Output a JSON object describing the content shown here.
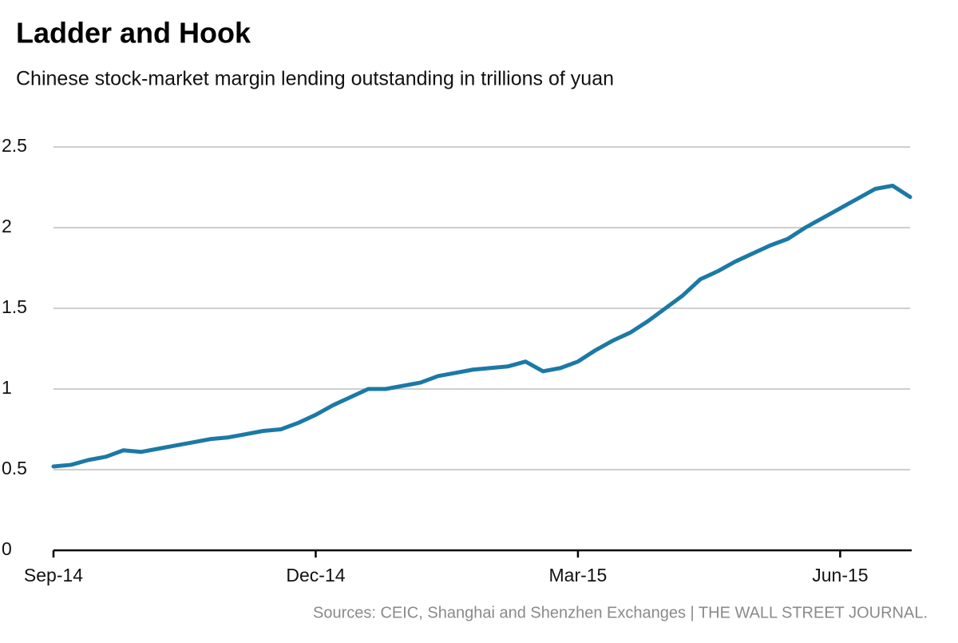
{
  "chart_data": {
    "type": "line",
    "title": "Ladder and Hook",
    "subtitle": "Chinese stock-market margin lending outstanding in trillions of yuan",
    "source": "Sources: CEIC, Shanghai and Shenzhen Exchanges  |  THE WALL STREET JOURNAL.",
    "color": "#1b79a5",
    "grid": true,
    "xlim": [
      0,
      49
    ],
    "xticks": [
      {
        "value": 0,
        "label": "Sep-14"
      },
      {
        "value": 15,
        "label": "Dec-14"
      },
      {
        "value": 30,
        "label": "Mar-15"
      },
      {
        "value": 45,
        "label": "Jun-15"
      }
    ],
    "ylim": [
      0,
      2.5
    ],
    "yticks": [
      0,
      0.5,
      1,
      1.5,
      2,
      2.5
    ],
    "values": [
      0.52,
      0.53,
      0.56,
      0.58,
      0.62,
      0.61,
      0.63,
      0.65,
      0.67,
      0.69,
      0.7,
      0.72,
      0.74,
      0.75,
      0.79,
      0.84,
      0.9,
      0.95,
      1.0,
      1.0,
      1.02,
      1.04,
      1.08,
      1.1,
      1.12,
      1.13,
      1.14,
      1.17,
      1.11,
      1.13,
      1.17,
      1.24,
      1.3,
      1.35,
      1.42,
      1.5,
      1.58,
      1.68,
      1.73,
      1.79,
      1.84,
      1.89,
      1.93,
      2.0,
      2.06,
      2.12,
      2.18,
      2.24,
      2.26,
      2.19
    ]
  }
}
